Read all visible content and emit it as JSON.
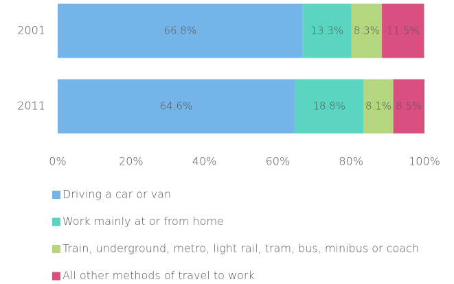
{
  "chart_data": {
    "type": "stacked-bar-horizontal",
    "categories": [
      "2001",
      "2011"
    ],
    "series": [
      {
        "name": "Driving a car or van",
        "color": "#74b4e8",
        "values": [
          66.8,
          64.6
        ],
        "value_labels": [
          "66.8%",
          "64.6%"
        ]
      },
      {
        "name": "Work mainly at or from home",
        "color": "#5ad6c0",
        "values": [
          13.3,
          18.8
        ],
        "value_labels": [
          "13.3%",
          "18.8%"
        ]
      },
      {
        "name": "Train, underground, metro, light rail, tram, bus, minibus or coach",
        "color": "#b3d67e",
        "values": [
          8.3,
          8.1
        ],
        "value_labels": [
          "8.3%",
          "8.1%"
        ]
      },
      {
        "name": "All other methods of travel to work",
        "color": "#d94f80",
        "values": [
          11.5,
          8.5
        ],
        "value_labels": [
          "11.5%",
          "8.5%"
        ]
      }
    ],
    "xlim": [
      0,
      100
    ],
    "xticks": [
      {
        "value": 0,
        "label": "0%"
      },
      {
        "value": 20,
        "label": "20%"
      },
      {
        "value": 40,
        "label": "40%"
      },
      {
        "value": 60,
        "label": "60%"
      },
      {
        "value": 80,
        "label": "80%"
      },
      {
        "value": 100,
        "label": "100%"
      }
    ],
    "grid": false,
    "legend": "bottom"
  }
}
